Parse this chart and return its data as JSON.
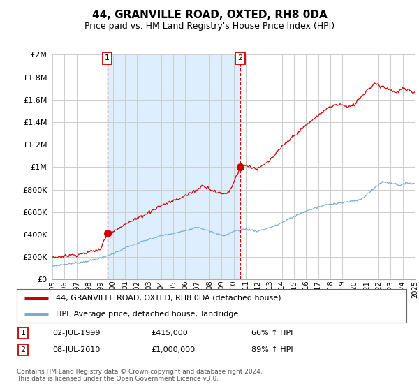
{
  "title": "44, GRANVILLE ROAD, OXTED, RH8 0DA",
  "subtitle": "Price paid vs. HM Land Registry's House Price Index (HPI)",
  "legend_line1": "44, GRANVILLE ROAD, OXTED, RH8 0DA (detached house)",
  "legend_line2": "HPI: Average price, detached house, Tandridge",
  "annotation1_date": "02-JUL-1999",
  "annotation1_price": "£415,000",
  "annotation1_hpi": "66% ↑ HPI",
  "annotation2_date": "08-JUL-2010",
  "annotation2_price": "£1,000,000",
  "annotation2_hpi": "89% ↑ HPI",
  "footnote": "Contains HM Land Registry data © Crown copyright and database right 2024.\nThis data is licensed under the Open Government Licence v3.0.",
  "red_color": "#cc0000",
  "blue_color": "#7aadd4",
  "shade_color": "#ddeeff",
  "background_color": "#ffffff",
  "grid_color": "#cccccc",
  "ylim": [
    0,
    2000000
  ],
  "yticks": [
    0,
    200000,
    400000,
    600000,
    800000,
    1000000,
    1200000,
    1400000,
    1600000,
    1800000,
    2000000
  ],
  "ytick_labels": [
    "£0",
    "£200K",
    "£400K",
    "£600K",
    "£800K",
    "£1M",
    "£1.2M",
    "£1.4M",
    "£1.6M",
    "£1.8M",
    "£2M"
  ],
  "sale1_x": 1999.54,
  "sale1_y": 415000,
  "sale2_x": 2010.54,
  "sale2_y": 1000000,
  "xmin": 1995,
  "xmax": 2025
}
